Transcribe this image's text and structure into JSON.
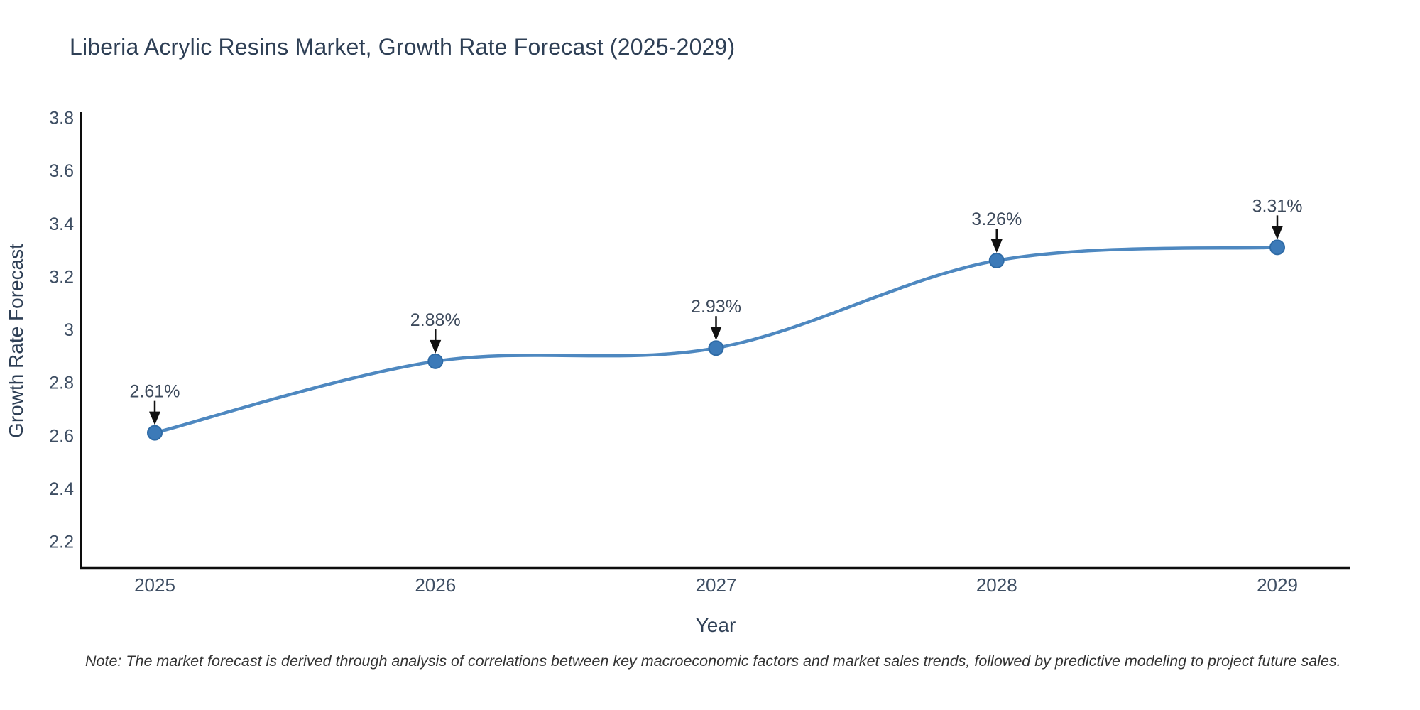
{
  "title": "Liberia Acrylic Resins Market, Growth Rate Forecast (2025-2029)",
  "note": "Note: The market forecast is derived through analysis of correlations between key macroeconomic factors and market sales trends, followed by predictive modeling to project future sales.",
  "chart_data": {
    "type": "line",
    "title": "Liberia Acrylic Resins Market, Growth Rate Forecast (2025-2029)",
    "xlabel": "Year",
    "ylabel": "Growth Rate Forecast",
    "x": [
      2025,
      2026,
      2027,
      2028,
      2029
    ],
    "values": [
      2.61,
      2.88,
      2.93,
      3.26,
      3.31
    ],
    "point_labels": [
      "2.61%",
      "2.88%",
      "2.93%",
      "3.26%",
      "3.31%"
    ],
    "yticks": [
      2.2,
      2.4,
      2.6,
      2.8,
      3,
      3.2,
      3.4,
      3.6,
      3.8
    ],
    "ylim": [
      2.1,
      3.82
    ],
    "grid": false,
    "line_style": "spline",
    "annotations": "value labels with black arrows pointing to each marker",
    "colors": {
      "line": "#4e88c0",
      "marker_fill": "#3c7ab8",
      "marker_border": "#2f6ba6",
      "arrow": "#111111",
      "axis_line": "#0d0d0d",
      "title_text": "#2e3f55",
      "tick_text": "#3e4e63",
      "annotation_text": "#3d4a5c",
      "note_text": "#333333"
    }
  }
}
